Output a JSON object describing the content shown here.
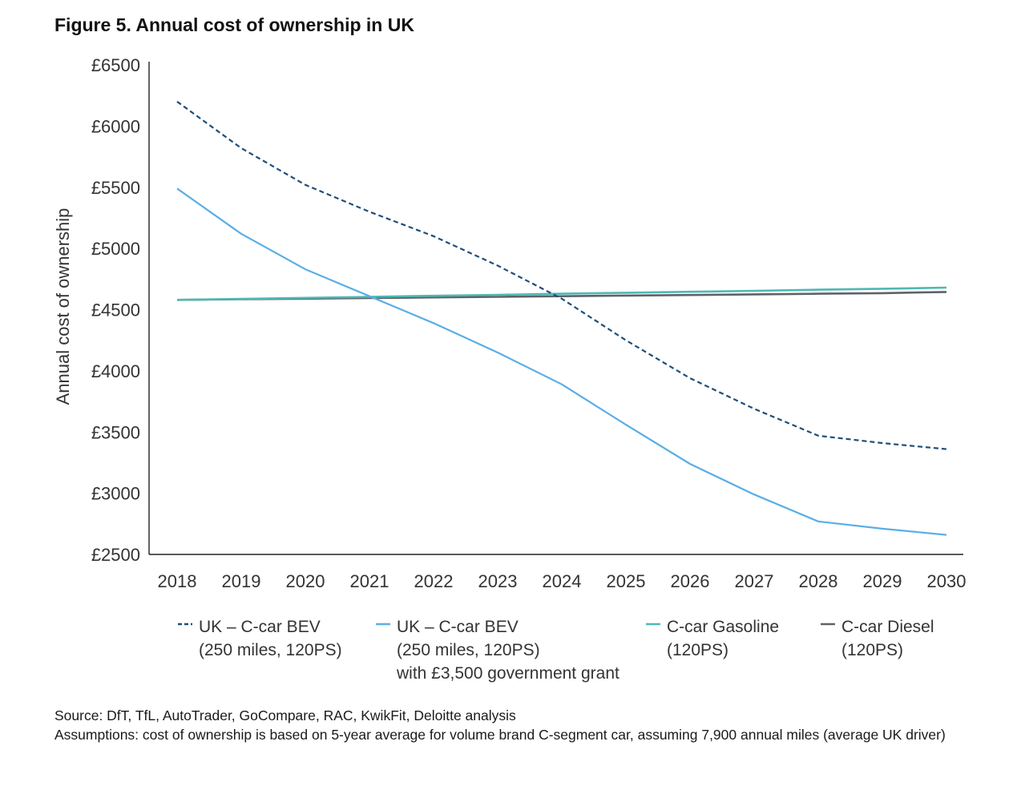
{
  "figure": {
    "title": "Figure 5. Annual cost of ownership in UK"
  },
  "chart_data": {
    "type": "line",
    "title": "Figure 5. Annual cost of ownership in UK",
    "xlabel": "",
    "ylabel": "Annual cost of ownership",
    "ylim": [
      2500,
      6500
    ],
    "y_ticks": [
      2500,
      3000,
      3500,
      4000,
      4500,
      5000,
      5500,
      6000,
      6500
    ],
    "y_tick_labels": [
      "£2500",
      "£3000",
      "£3500",
      "£4000",
      "£4500",
      "£5000",
      "£5500",
      "£6000",
      "£6500"
    ],
    "x": [
      "2018",
      "2019",
      "2020",
      "2021",
      "2022",
      "2023",
      "2024",
      "2025",
      "2026",
      "2027",
      "2028",
      "2029",
      "2030"
    ],
    "grid": false,
    "legend_position": "bottom",
    "series": [
      {
        "name": "UK – C-car BEV (250 miles, 120PS)",
        "legend_lines": [
          "UK – C-car BEV",
          "(250 miles, 120PS)"
        ],
        "color": "#1f4e79",
        "dash": "dashed",
        "values": [
          6200,
          5820,
          5520,
          5300,
          5100,
          4860,
          4590,
          4250,
          3940,
          3690,
          3470,
          3410,
          3360
        ]
      },
      {
        "name": "UK – C-car BEV (250 miles, 120PS) with £3,500 government grant",
        "legend_lines": [
          "UK – C-car BEV",
          "(250 miles, 120PS)",
          "with £3,500 government grant"
        ],
        "color": "#5aaee6",
        "dash": "solid",
        "values": [
          5490,
          5120,
          4830,
          4610,
          4390,
          4150,
          3890,
          3560,
          3240,
          2990,
          2770,
          2710,
          2660
        ]
      },
      {
        "name": "C-car Gasoline (120PS)",
        "legend_lines": [
          "C-car Gasoline",
          "(120PS)"
        ],
        "color": "#4fb8b4",
        "dash": "solid",
        "values": [
          4580,
          4588,
          4596,
          4605,
          4613,
          4621,
          4630,
          4638,
          4646,
          4654,
          4663,
          4671,
          4680
        ]
      },
      {
        "name": "C-car Diesel (120PS)",
        "legend_lines": [
          "C-car Diesel",
          "(120PS)"
        ],
        "color": "#5f6266",
        "dash": "solid",
        "values": [
          4580,
          4585,
          4590,
          4595,
          4600,
          4605,
          4610,
          4615,
          4620,
          4625,
          4630,
          4635,
          4645
        ]
      }
    ]
  },
  "footnotes": {
    "source": "Source: DfT, TfL, AutoTrader, GoCompare, RAC, KwikFit, Deloitte analysis",
    "assumptions": "Assumptions: cost of ownership is based on 5-year average for volume brand C-segment car, assuming 7,900 annual miles (average UK driver)"
  }
}
